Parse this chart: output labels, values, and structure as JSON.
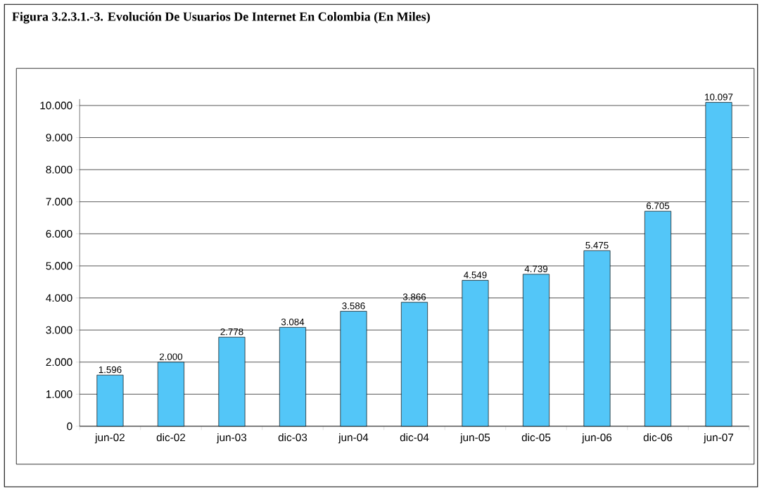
{
  "chart_data": {
    "type": "bar",
    "title": "Figura 3.2.3.1.-3. Evolución De Usuarios De Internet En Colombia (En Miles)",
    "categories": [
      "jun-02",
      "dic-02",
      "jun-03",
      "dic-03",
      "jun-04",
      "dic-04",
      "jun-05",
      "dic-05",
      "jun-06",
      "dic-06",
      "jun-07"
    ],
    "values": [
      1596,
      2000,
      2778,
      3084,
      3586,
      3866,
      4549,
      4739,
      5475,
      6705,
      10097
    ],
    "value_labels": [
      "1.596",
      "2.000",
      "2.778",
      "3.084",
      "3.586",
      "3.866",
      "4.549",
      "4.739",
      "5.475",
      "6.705",
      "10.097"
    ],
    "color": "#53c6f8",
    "ylim": [
      0,
      10200
    ],
    "yticks": [
      {
        "value": 0,
        "label": "0"
      },
      {
        "value": 1000,
        "label": "1.000"
      },
      {
        "value": 2000,
        "label": "2.000"
      },
      {
        "value": 3000,
        "label": "3.000"
      },
      {
        "value": 4000,
        "label": "4.000"
      },
      {
        "value": 5000,
        "label": "5.000"
      },
      {
        "value": 6000,
        "label": "6.000"
      },
      {
        "value": 7000,
        "label": "7.000"
      },
      {
        "value": 8000,
        "label": "8.000"
      },
      {
        "value": 9000,
        "label": "9.000"
      },
      {
        "value": 10000,
        "label": "10.000"
      }
    ],
    "grid": "y"
  }
}
